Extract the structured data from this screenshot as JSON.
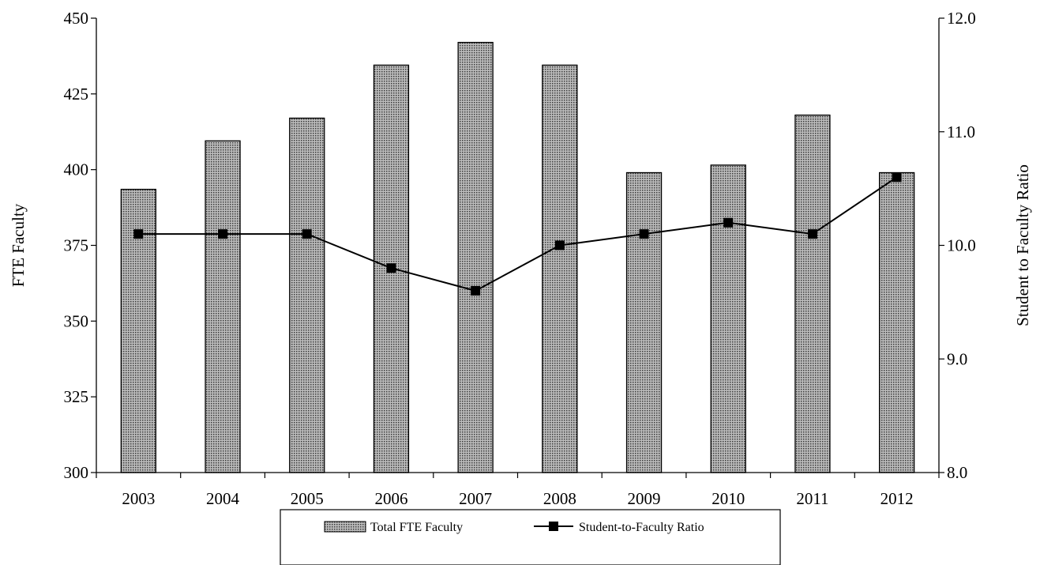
{
  "chart_data": {
    "type": "bar",
    "categories": [
      "2003",
      "2004",
      "2005",
      "2006",
      "2007",
      "2008",
      "2009",
      "2010",
      "2011",
      "2012"
    ],
    "series": [
      {
        "name": "Total FTE Faculty",
        "type": "bar",
        "axis": "left",
        "values": [
          393.5,
          409.5,
          417,
          434.5,
          442,
          434.5,
          399,
          401.5,
          418,
          399
        ]
      },
      {
        "name": "Student-to-Faculty Ratio",
        "type": "line",
        "axis": "right",
        "marker": "square",
        "values": [
          10.1,
          10.1,
          10.1,
          9.8,
          9.6,
          10.0,
          10.1,
          10.2,
          10.1,
          10.6
        ]
      }
    ],
    "ylabel": "FTE Faculty",
    "y2label": "Student to Faculty Ratio",
    "ylim": [
      300,
      450
    ],
    "y2lim": [
      8.0,
      12.0
    ],
    "yticks": [
      "300",
      "325",
      "350",
      "375",
      "400",
      "425",
      "450"
    ],
    "y2ticks": [
      "8.0",
      "9.0",
      "10.0",
      "11.0",
      "12.0"
    ],
    "grid": false,
    "legend_position": "bottom",
    "colors": {
      "bar_fill": "#b0b0b0",
      "bar_pattern_dot": "#333333",
      "line": "#000000",
      "marker": "#000000"
    }
  }
}
